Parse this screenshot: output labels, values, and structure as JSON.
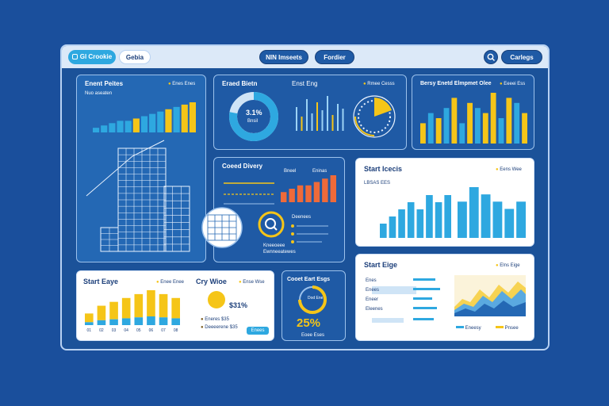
{
  "colors": {
    "background": "#1a4f9c",
    "panel_dark": "#1f5aa5",
    "accent_yellow": "#f5c518",
    "accent_cyan": "#2ea8e0",
    "accent_orange": "#ee6a3a",
    "light": "#ffffff"
  },
  "topbar": {
    "left_pill": {
      "icon": "grid-icon",
      "label": "Gl Crookie"
    },
    "left_tab": "Gebia",
    "center_tabs": [
      "NIN Imseets",
      "Fordier"
    ],
    "search_icon": "search-icon",
    "right_button": "Carlegs"
  },
  "panel_building": {
    "title": "Enent Peites",
    "legend": "Enes Enes",
    "sub": "Nuo aseaten",
    "bar_values": [
      2,
      3,
      4,
      5,
      5,
      6,
      7,
      8,
      9,
      10,
      11,
      12,
      13
    ]
  },
  "panel_donut": {
    "title": "Eraed Bietn",
    "center_value": "3.1%",
    "center_sub": "Bnsil",
    "sub_title": "Enst Eng",
    "legend": "Rmee Cesss",
    "gauge_legend": "Eeei Ls",
    "donut_fraction": 0.78
  },
  "panel_bars_top": {
    "title": "Bersy Enetd Elmpmet Oleenes",
    "legend": "Eeeei Ess",
    "bar_values": [
      4,
      6,
      5,
      7,
      9,
      4,
      8,
      7,
      6,
      10,
      5,
      9,
      8,
      6
    ]
  },
  "panel_delivery": {
    "title": "Coeed Divery",
    "legend_a": "Bneel",
    "legend_b": "Eninas",
    "bar_values": [
      3,
      4,
      5,
      5,
      6,
      7,
      8
    ],
    "line_label": "Deenees",
    "caption_lines": [
      "Kneeoeee",
      "Ewnneeatewes"
    ]
  },
  "panel_dist": {
    "title": "Start Icecis",
    "legend": "Eens Wee",
    "sub": "LBSAS EES",
    "bar_values": [
      2,
      3,
      4,
      5,
      4,
      6,
      5,
      6
    ],
    "bar_values_b": [
      5,
      7,
      6,
      5,
      4,
      5
    ]
  },
  "panel_slope": {
    "title": "Start Eige",
    "legend": "Elns Eige",
    "rows": [
      "Enes",
      "Enees",
      "Eneer",
      "Eleenes"
    ],
    "legend_y": "Eneesy",
    "legend_b": "Pnsee"
  },
  "panel_start_bars": {
    "title": "Start Eaye",
    "legend": "Enee Enee",
    "bar_values": [
      3,
      5,
      6,
      7,
      8,
      9,
      8,
      7
    ],
    "ticks": [
      "01",
      "02",
      "03",
      "04",
      "05",
      "06",
      "07",
      "08"
    ]
  },
  "panel_cry": {
    "title": "Cry Wioe",
    "legend": "Ense Wse",
    "value": "$31%",
    "rows": [
      "Eneres  $35",
      "Deeeerene  $35"
    ],
    "button": "Enees"
  },
  "panel_percent": {
    "title": "Cooet Eart Esgs",
    "value": "25%",
    "sub": "Eoee Eses",
    "ring_label": "Dod\nEne"
  }
}
